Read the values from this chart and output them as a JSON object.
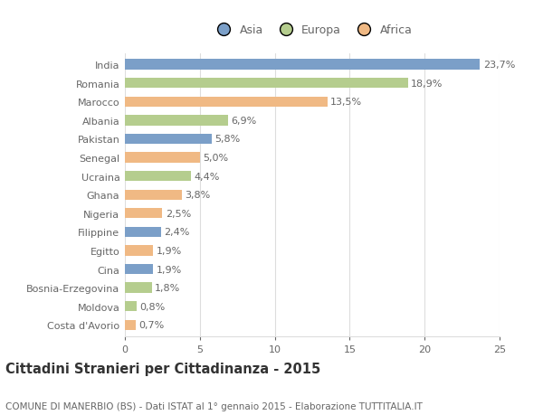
{
  "categories": [
    "Costa d'Avorio",
    "Moldova",
    "Bosnia-Erzegovina",
    "Cina",
    "Egitto",
    "Filippine",
    "Nigeria",
    "Ghana",
    "Ucraina",
    "Senegal",
    "Pakistan",
    "Albania",
    "Marocco",
    "Romania",
    "India"
  ],
  "values": [
    0.7,
    0.8,
    1.8,
    1.9,
    1.9,
    2.4,
    2.5,
    3.8,
    4.4,
    5.0,
    5.8,
    6.9,
    13.5,
    18.9,
    23.7
  ],
  "labels": [
    "0,7%",
    "0,8%",
    "1,8%",
    "1,9%",
    "1,9%",
    "2,4%",
    "2,5%",
    "3,8%",
    "4,4%",
    "5,0%",
    "5,8%",
    "6,9%",
    "13,5%",
    "18,9%",
    "23,7%"
  ],
  "colors": [
    "#f0b984",
    "#b5cd8e",
    "#b5cd8e",
    "#7b9fc8",
    "#f0b984",
    "#7b9fc8",
    "#f0b984",
    "#f0b984",
    "#b5cd8e",
    "#f0b984",
    "#7b9fc8",
    "#b5cd8e",
    "#f0b984",
    "#b5cd8e",
    "#7b9fc8"
  ],
  "legend_labels": [
    "Asia",
    "Europa",
    "Africa"
  ],
  "legend_colors": [
    "#7b9fc8",
    "#b5cd8e",
    "#f0b984"
  ],
  "title": "Cittadini Stranieri per Cittadinanza - 2015",
  "subtitle": "COMUNE DI MANERBIO (BS) - Dati ISTAT al 1° gennaio 2015 - Elaborazione TUTTITALIA.IT",
  "xlim": [
    0,
    25
  ],
  "xticks": [
    0,
    5,
    10,
    15,
    20,
    25
  ],
  "bg_color": "#ffffff",
  "bar_height": 0.55,
  "grid_color": "#dddddd",
  "text_color": "#666666",
  "label_fontsize": 8,
  "title_fontsize": 10.5,
  "subtitle_fontsize": 7.5,
  "tick_fontsize": 8,
  "ytick_fontsize": 8
}
